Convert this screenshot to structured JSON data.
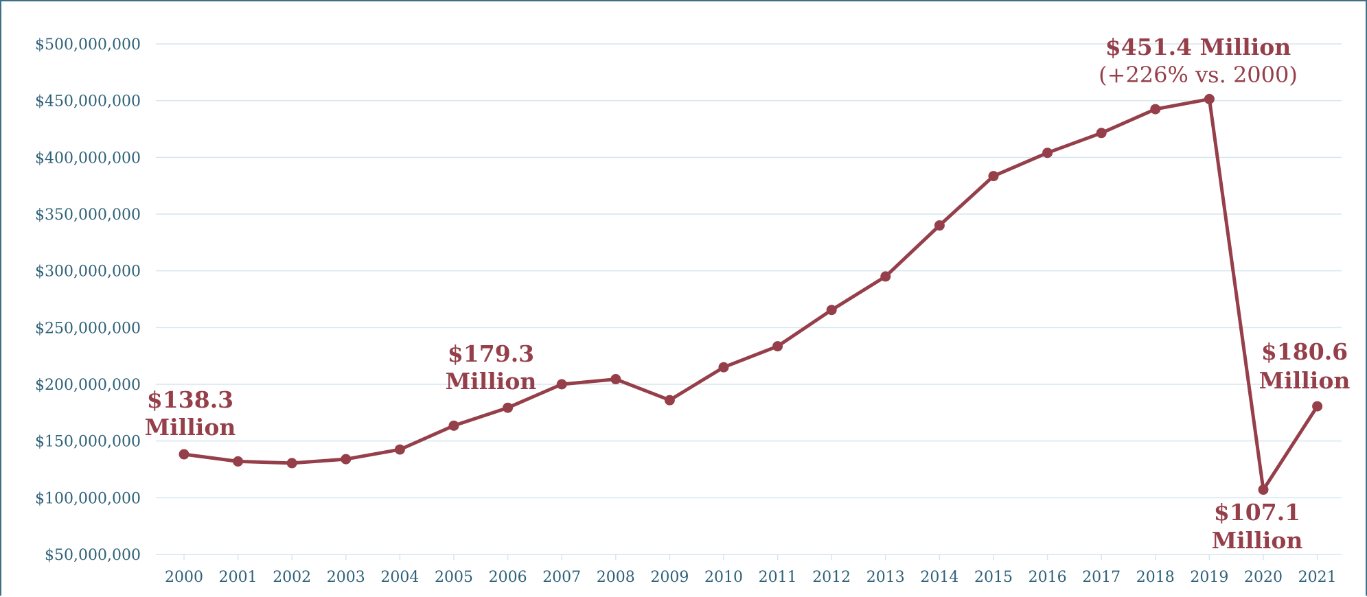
{
  "chart_data": {
    "type": "line",
    "title": "",
    "xlabel": "",
    "ylabel": "",
    "categories": [
      "2000",
      "2001",
      "2002",
      "2003",
      "2004",
      "2005",
      "2006",
      "2007",
      "2008",
      "2009",
      "2010",
      "2011",
      "2012",
      "2013",
      "2014",
      "2015",
      "2016",
      "2017",
      "2018",
      "2019",
      "2020",
      "2021"
    ],
    "series": [
      {
        "values": [
          138300000,
          132000000,
          130500000,
          134000000,
          142500000,
          163500000,
          179300000,
          200000000,
          204500000,
          186000000,
          215000000,
          233500000,
          265500000,
          295000000,
          340000000,
          383500000,
          404000000,
          421500000,
          442500000,
          451400000,
          107100000,
          180600000
        ],
        "color": "#953f4a"
      }
    ],
    "ylim": [
      50000000,
      500000000
    ],
    "y_ticks": [
      "$50,000,000",
      "$100,000,000",
      "$150,000,000",
      "$200,000,000",
      "$250,000,000",
      "$300,000,000",
      "$350,000,000",
      "$400,000,000",
      "$450,000,000",
      "$500,000,000"
    ],
    "grid": true,
    "legend": "none",
    "colors": {
      "line": "#953f4a",
      "grid": "#d6e6ef",
      "axis_text": "#2e6178",
      "frame": "#3e6f82"
    },
    "annotations": [
      {
        "index": 0,
        "lines": [
          "$138.3",
          "Million"
        ],
        "style": [
          "bold",
          "bold"
        ]
      },
      {
        "index": 6,
        "lines": [
          "$179.3",
          "Million"
        ],
        "style": [
          "bold",
          "bold"
        ]
      },
      {
        "index": 19,
        "lines": [
          "$451.4 Million",
          "(+226% vs. 2000)"
        ],
        "style": [
          "bold",
          "normal"
        ]
      },
      {
        "index": 20,
        "lines": [
          "$107.1",
          "Million"
        ],
        "style": [
          "bold",
          "bold"
        ]
      },
      {
        "index": 21,
        "lines": [
          "$180.6",
          "Million"
        ],
        "style": [
          "bold",
          "bold"
        ]
      }
    ]
  }
}
